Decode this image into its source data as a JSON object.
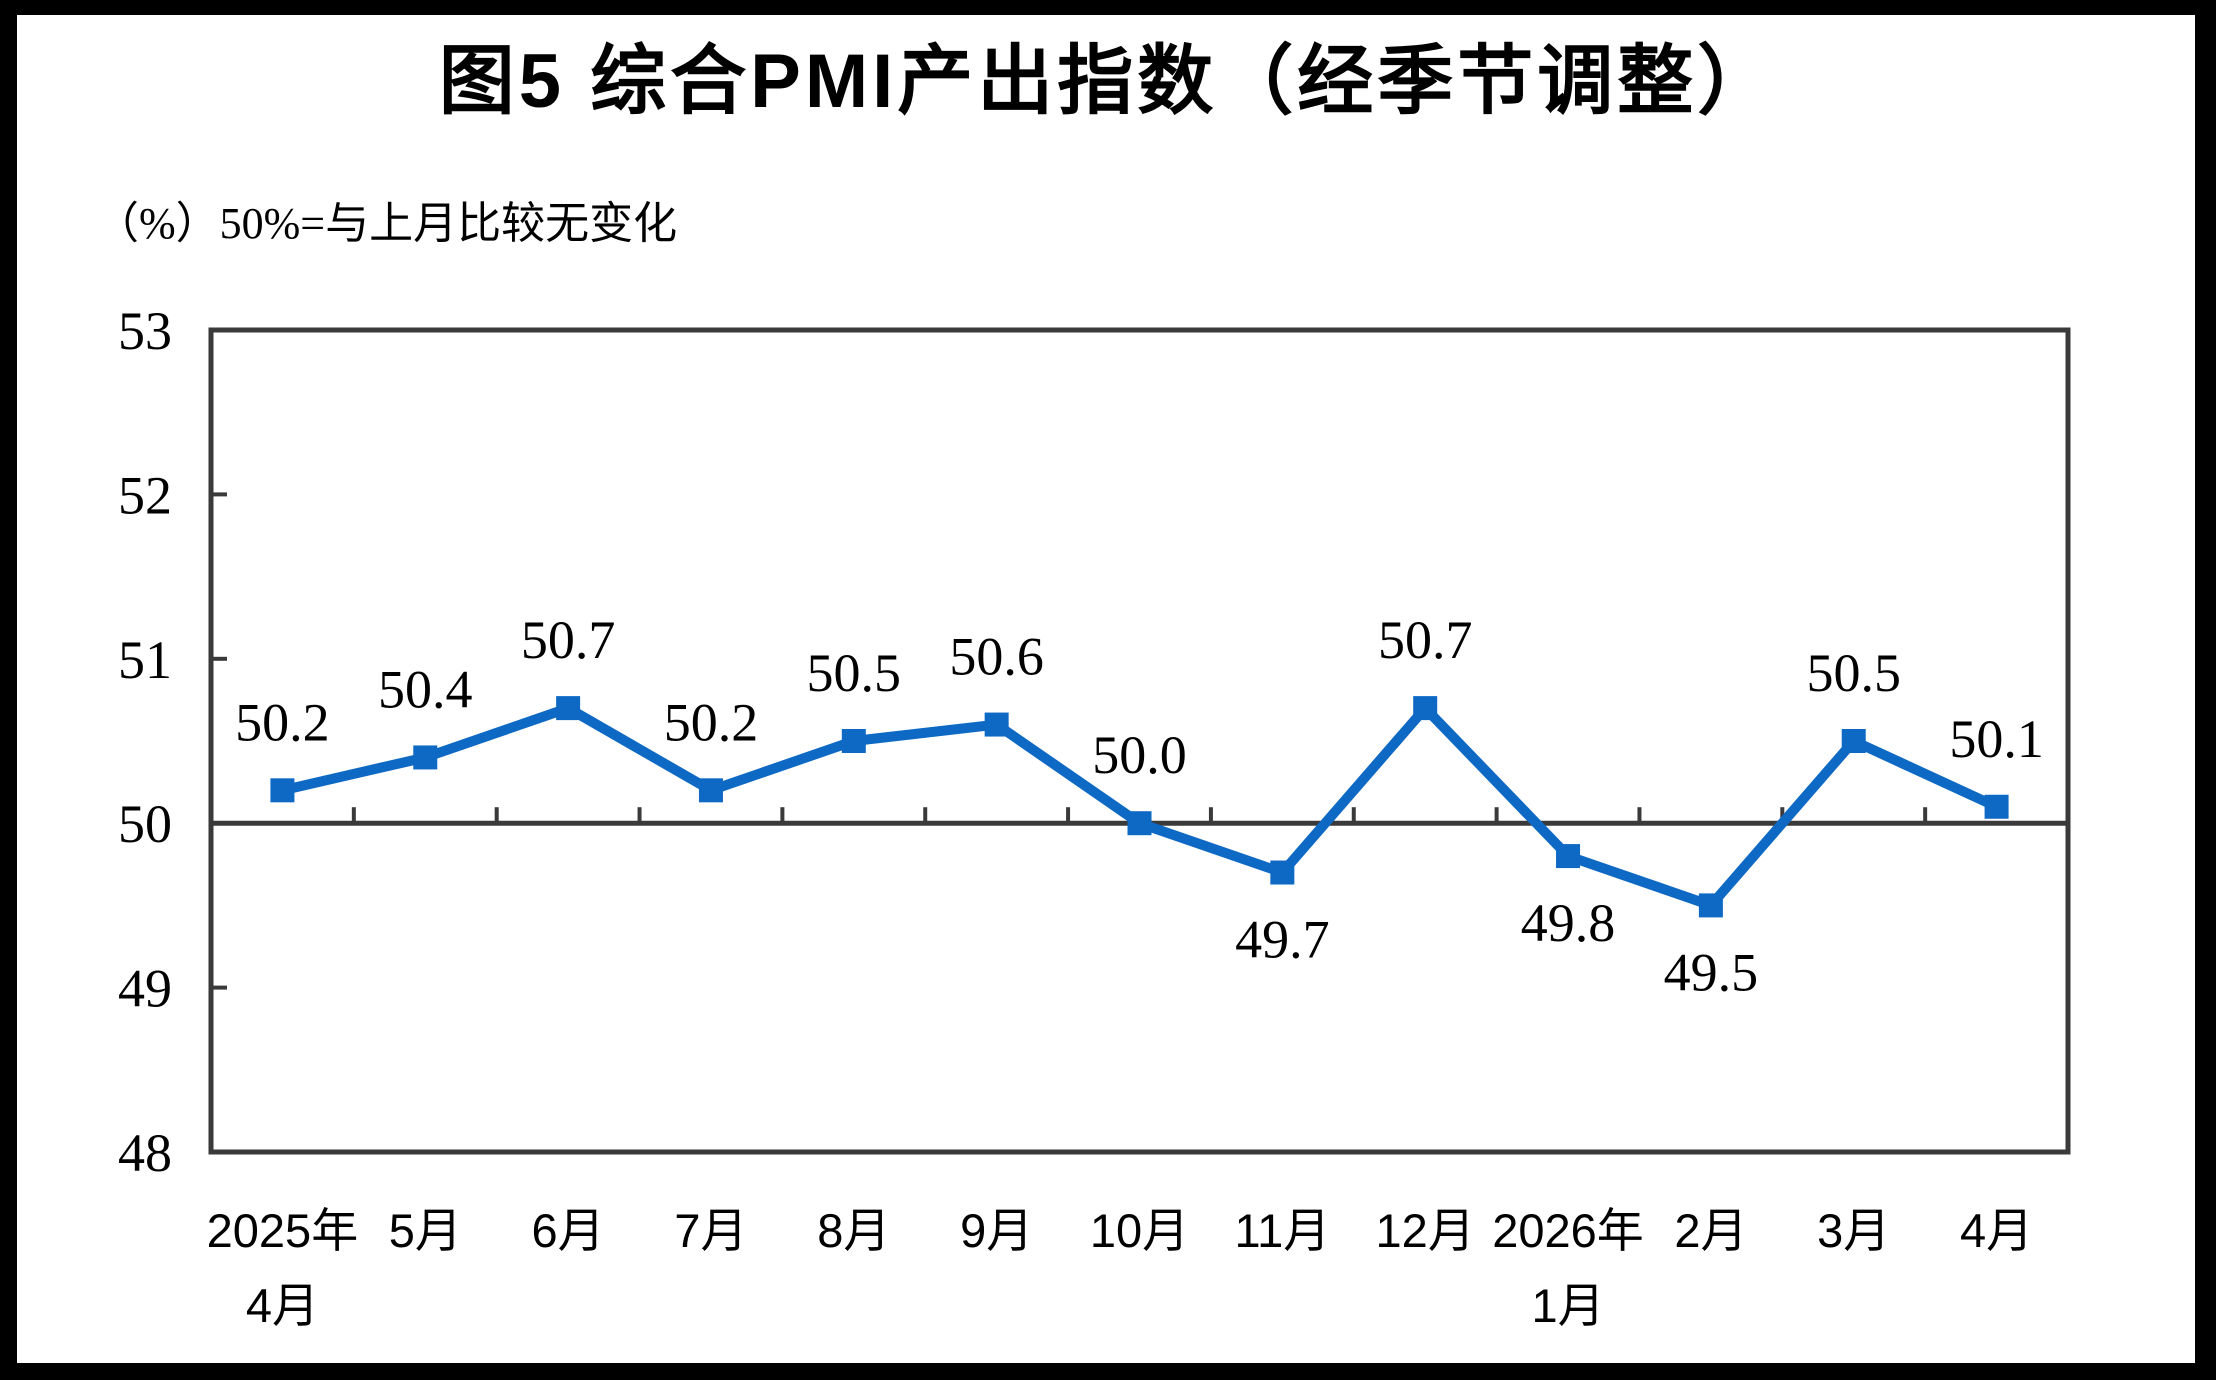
{
  "page": {
    "background_color": "#FFFFFF",
    "frame_color": "#000000"
  },
  "chart_data": {
    "type": "line",
    "title": "图5 综合PMI产出指数（经季节调整）",
    "unit_note": "（%）50%=与上月比较无变化",
    "categories": [
      "2025年\n4月",
      "5月",
      "6月",
      "7月",
      "8月",
      "9月",
      "10月",
      "11月",
      "12月",
      "2026年\n1月",
      "2月",
      "3月",
      "4月"
    ],
    "values": [
      50.2,
      50.4,
      50.7,
      50.2,
      50.5,
      50.6,
      50.0,
      49.7,
      50.7,
      49.8,
      49.5,
      50.5,
      50.1
    ],
    "data_labels": [
      "50.2",
      "50.4",
      "50.7",
      "50.2",
      "50.5",
      "50.6",
      "50.0",
      "49.7",
      "50.7",
      "49.8",
      "49.5",
      "50.5",
      "50.1"
    ],
    "data_label_positions": [
      "above",
      "above",
      "above",
      "above",
      "above",
      "above",
      "above",
      "below",
      "above",
      "below",
      "below",
      "above",
      "above"
    ],
    "ylim": [
      48,
      53
    ],
    "yticks": [
      48,
      49,
      50,
      51,
      52,
      53
    ],
    "reference_line_value": 50,
    "marker": "square",
    "grid": "off",
    "legend_position": "none",
    "line_color": "#0E69C4",
    "axis_color": "#3A3A3A",
    "text_color": "#000000"
  }
}
